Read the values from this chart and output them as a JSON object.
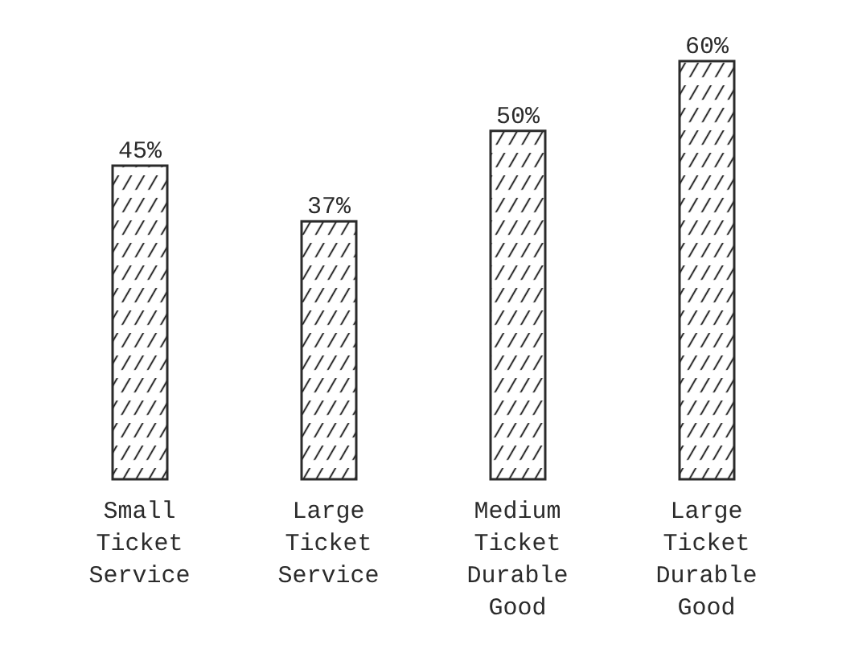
{
  "chart_data": {
    "type": "bar",
    "categories": [
      "Small Ticket Service",
      "Large Ticket Service",
      "Medium Ticket Durable Good",
      "Large Ticket Durable Good"
    ],
    "values": [
      45,
      37,
      50,
      60
    ],
    "value_labels": [
      "45%",
      "37%",
      "50%",
      "60%"
    ],
    "color": "#2b2b2b"
  }
}
